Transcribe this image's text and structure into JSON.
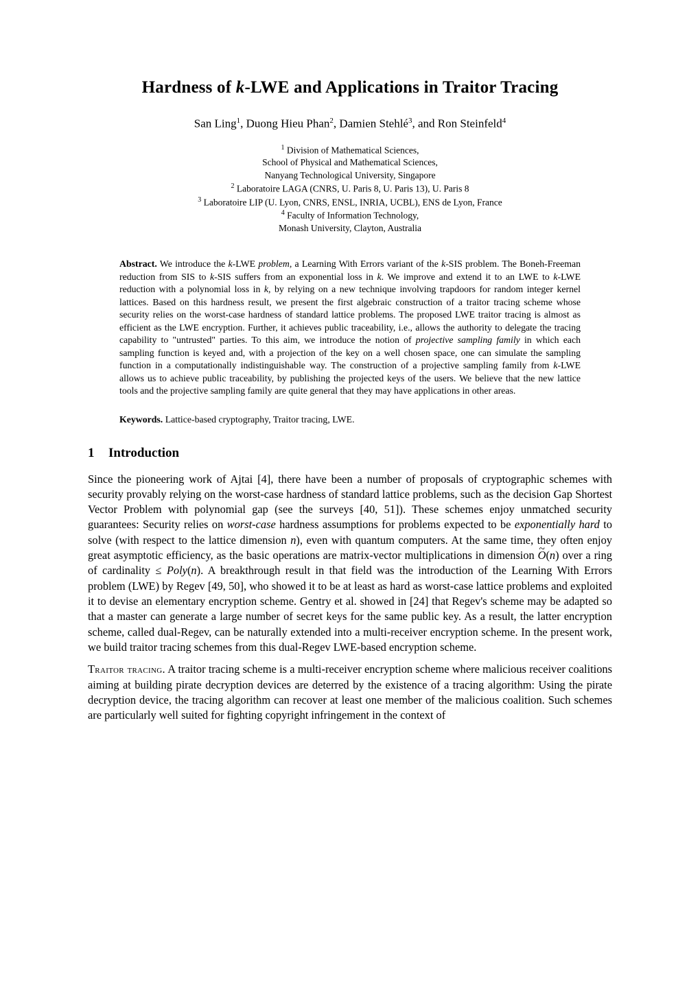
{
  "title_prefix": "Hardness of ",
  "title_var": "k",
  "title_suffix": "-LWE and Applications in Traitor Tracing",
  "authors_html": "San Ling<sup>1</sup>, Duong Hieu Phan<sup>2</sup>, Damien Stehlé<sup>3</sup>, and Ron Steinfeld<sup>4</sup>",
  "affiliations": [
    "<sup>1</sup> Division of Mathematical Sciences,",
    "School of Physical and Mathematical Sciences,",
    "Nanyang Technological University, Singapore",
    "<sup>2</sup> Laboratoire LAGA (CNRS, U. Paris 8, U. Paris 13), U. Paris 8",
    "<sup>3</sup> Laboratoire LIP (U. Lyon, CNRS, ENSL, INRIA, UCBL), ENS de Lyon, France",
    "<sup>4</sup> Faculty of Information Technology,",
    "Monash University, Clayton, Australia"
  ],
  "abstract_label": "Abstract.",
  "abstract_html": "We introduce the <em>k</em>-LWE <em>problem</em>, a Learning With Errors variant of the <em>k</em>-SIS problem. The Boneh-Freeman reduction from SIS to <em>k</em>-SIS suffers from an exponential loss in <em>k</em>. We improve and extend it to an LWE to <em>k</em>-LWE reduction with a polynomial loss in <em>k</em>, by relying on a new technique involving trapdoors for random integer kernel lattices. Based on this hardness result, we present the first algebraic construction of a traitor tracing scheme whose security relies on the worst-case hardness of standard lattice problems. The proposed LWE traitor tracing is almost as efficient as the LWE encryption. Further, it achieves public traceability, i.e., allows the authority to delegate the tracing capability to \"untrusted\" parties. To this aim, we introduce the notion of <em>projective sampling family</em> in which each sampling function is keyed and, with a projection of the key on a well chosen space, one can simulate the sampling function in a computationally indistinguishable way. The construction of a projective sampling family from <em>k</em>-LWE allows us to achieve public traceability, by publishing the projected keys of the users. We believe that the new lattice tools and the projective sampling family are quite general that they may have applications in other areas.",
  "keywords_label": "Keywords.",
  "keywords_text": "Lattice-based cryptography, Traitor tracing, LWE.",
  "section1_num": "1",
  "section1_title": "Introduction",
  "para1_html": "Since the pioneering work of Ajtai [4], there have been a number of proposals of cryptographic schemes with security provably relying on the worst-case hardness of standard lattice problems, such as the decision Gap Shortest Vector Problem with polynomial gap (see the surveys [40, 51]). These schemes enjoy unmatched security guarantees: Security relies on <em>worst-case</em> hardness assumptions for problems expected to be <em>exponentially hard</em> to solve (with respect to the lattice dimension <span class=\"mathit\">n</span>), even with quantum computers. At the same time, they often enjoy great asymptotic efficiency, as the basic operations are matrix-vector multiplications in dimension <span class=\"tilde-over mathit\">O</span>(<span class=\"mathit\">n</span>) over a ring of cardinality ≤ <span class=\"calP\">P</span><span class=\"mathit\">oly</span>(<span class=\"mathit\">n</span>). A breakthrough result in that field was the introduction of the Learning With Errors problem (LWE) by Regev [49, 50], who showed it to be at least as hard as worst-case lattice problems and exploited it to devise an elementary encryption scheme. Gentry et al. showed in [24] that Regev's scheme may be adapted so that a master can generate a large number of secret keys for the same public key. As a result, the latter encryption scheme, called dual-Regev, can be naturally extended into a multi-receiver encryption scheme. In the present work, we build traitor tracing schemes from this dual-Regev LWE-based encryption scheme.",
  "para2_leadin": "Traitor tracing.",
  "para2_html": "A traitor tracing scheme is a multi-receiver encryption scheme where malicious receiver coalitions aiming at building pirate decryption devices are deterred by the existence of a tracing algorithm: Using the pirate decryption device, the tracing algorithm can recover at least one member of the malicious coalition. Such schemes are particularly well suited for fighting copyright infringement in the context of"
}
